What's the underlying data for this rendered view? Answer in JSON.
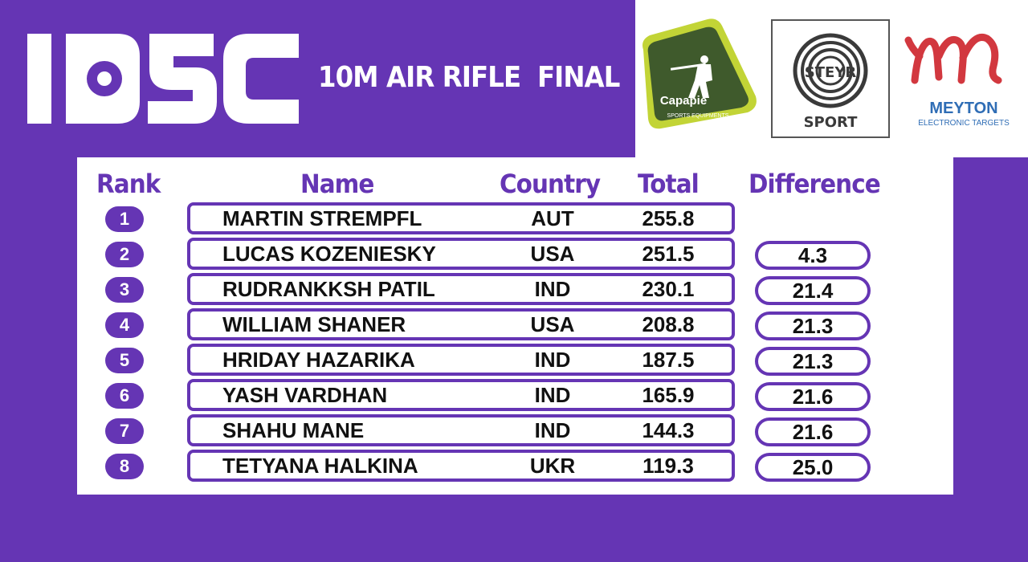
{
  "header": {
    "logo_text": "IOSC",
    "event_title": "10M AIR RIFLE  FINAL"
  },
  "sponsors": {
    "capapie": {
      "name": "Capapie",
      "tagline": "SPORTS EQUIPMENTS"
    },
    "steyr": {
      "mark": "STEYR",
      "label": "SPORT"
    },
    "meyton": {
      "name": "MEYTON",
      "tagline": "ELECTRONIC TARGETS"
    }
  },
  "columns": {
    "rank": "Rank",
    "name": "Name",
    "country": "Country",
    "total": "Total",
    "difference": "Difference"
  },
  "rows": [
    {
      "rank": "1",
      "name": "MARTIN STREMPFL",
      "country": "AUT",
      "total": "255.8",
      "difference": ""
    },
    {
      "rank": "2",
      "name": "LUCAS KOZENIESKY",
      "country": "USA",
      "total": "251.5",
      "difference": "4.3"
    },
    {
      "rank": "3",
      "name": "RUDRANKKSH PATIL",
      "country": "IND",
      "total": "230.1",
      "difference": "21.4"
    },
    {
      "rank": "4",
      "name": "WILLIAM SHANER",
      "country": "USA",
      "total": "208.8",
      "difference": "21.3"
    },
    {
      "rank": "5",
      "name": "HRIDAY HAZARIKA",
      "country": "IND",
      "total": "187.5",
      "difference": "21.3"
    },
    {
      "rank": "6",
      "name": "YASH VARDHAN",
      "country": "IND",
      "total": "165.9",
      "difference": "21.6"
    },
    {
      "rank": "7",
      "name": "SHAHU MANE",
      "country": "IND",
      "total": "144.3",
      "difference": "21.6"
    },
    {
      "rank": "8",
      "name": "TETYANA HALKINA",
      "country": "UKR",
      "total": "119.3",
      "difference": "25.0"
    }
  ],
  "colors": {
    "background": "#6535b4",
    "accent": "#6535b4",
    "panel": "#ffffff",
    "text": "#111111",
    "capapie_green": "#3f5a2c",
    "capapie_lime": "#c2d436",
    "meyton_red": "#d2383f",
    "meyton_blue": "#2f6db5"
  }
}
